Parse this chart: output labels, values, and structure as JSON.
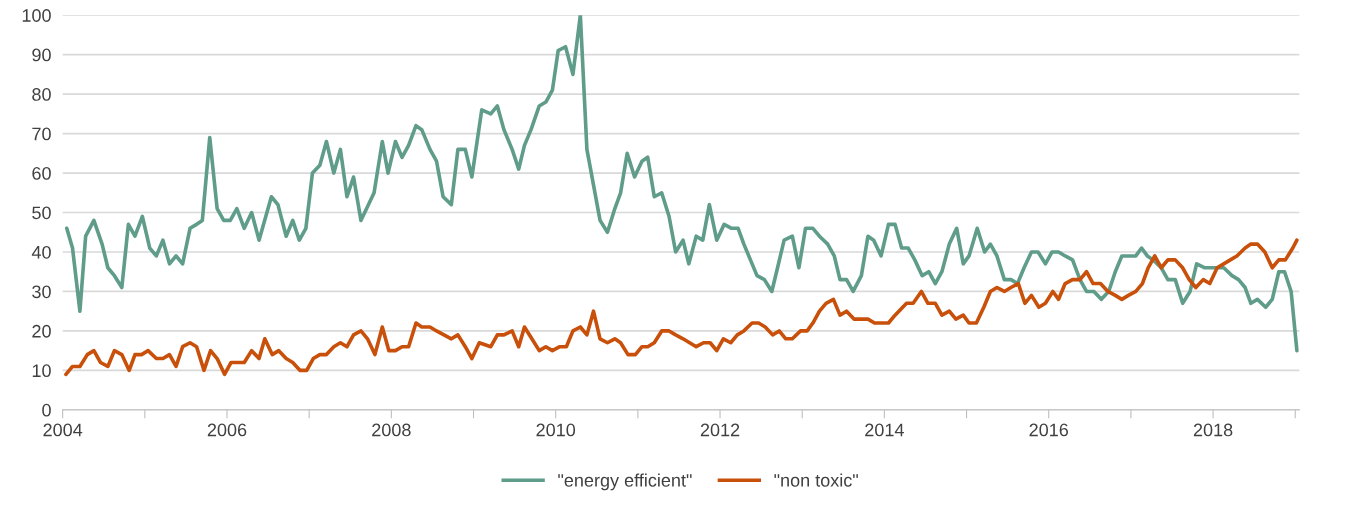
{
  "chart_data": {
    "type": "line",
    "xlim": [
      2004,
      2019.05
    ],
    "xticks": [
      2004,
      {
        "value": 2005,
        "label": null
      },
      2006,
      {
        "value": 2007,
        "label": null
      },
      2008,
      {
        "value": 2009,
        "label": null
      },
      2010,
      {
        "value": 2011,
        "label": null
      },
      2012,
      {
        "value": 2013,
        "label": null
      },
      2014,
      {
        "value": 2015,
        "label": null
      },
      2016,
      {
        "value": 2017,
        "label": null
      },
      2018,
      {
        "value": 2019,
        "label": null
      }
    ],
    "ylim": [
      0,
      100
    ],
    "yticks": [
      0,
      10,
      20,
      30,
      40,
      50,
      60,
      70,
      80,
      90,
      100
    ],
    "grid": "y",
    "legend": "bottom",
    "line_style": "solid",
    "series": [
      {
        "name": "\"energy efficient\"",
        "color": "#5f9c8a",
        "x": [
          2004.05,
          2004.12,
          2004.21,
          2004.28,
          2004.38,
          2004.48,
          2004.55,
          2004.63,
          2004.72,
          2004.8,
          2004.88,
          2004.97,
          2005.06,
          2005.14,
          2005.22,
          2005.3,
          2005.38,
          2005.46,
          2005.55,
          2005.63,
          2005.7,
          2005.79,
          2005.88,
          2005.96,
          2006.04,
          2006.12,
          2006.21,
          2006.3,
          2006.39,
          2006.54,
          2006.62,
          2006.72,
          2006.8,
          2006.88,
          2006.96,
          2007.04,
          2007.13,
          2007.21,
          2007.3,
          2007.38,
          2007.46,
          2007.54,
          2007.63,
          2007.79,
          2007.89,
          2007.96,
          2008.05,
          2008.13,
          2008.21,
          2008.3,
          2008.37,
          2008.47,
          2008.55,
          2008.63,
          2008.73,
          2008.81,
          2008.9,
          2008.98,
          2009.1,
          2009.21,
          2009.29,
          2009.37,
          2009.47,
          2009.55,
          2009.62,
          2009.7,
          2009.8,
          2009.88,
          2009.96,
          2010.03,
          2010.12,
          2010.21,
          2010.3,
          2010.38,
          2010.46,
          2010.54,
          2010.63,
          2010.72,
          2010.79,
          2010.87,
          2010.96,
          2011.05,
          2011.12,
          2011.2,
          2011.29,
          2011.38,
          2011.46,
          2011.55,
          2011.62,
          2011.71,
          2011.79,
          2011.87,
          2011.96,
          2012.05,
          2012.14,
          2012.22,
          2012.29,
          2012.37,
          2012.45,
          2012.54,
          2012.63,
          2012.7,
          2012.78,
          2012.88,
          2012.96,
          2013.04,
          2013.13,
          2013.21,
          2013.31,
          2013.39,
          2013.46,
          2013.54,
          2013.62,
          2013.72,
          2013.8,
          2013.87,
          2013.96,
          2014.05,
          2014.13,
          2014.21,
          2014.29,
          2014.37,
          2014.46,
          2014.54,
          2014.62,
          2014.7,
          2014.79,
          2014.88,
          2014.96,
          2015.03,
          2015.13,
          2015.22,
          2015.29,
          2015.37,
          2015.46,
          2015.54,
          2015.62,
          2015.7,
          2015.79,
          2015.87,
          2015.96,
          2016.04,
          2016.12,
          2016.2,
          2016.29,
          2016.38,
          2016.46,
          2016.55,
          2016.64,
          2016.73,
          2016.81,
          2016.89,
          2016.98,
          2017.06,
          2017.13,
          2017.2,
          2017.27,
          2017.37,
          2017.45,
          2017.54,
          2017.63,
          2017.72,
          2017.8,
          2017.9,
          2017.98,
          2018.05,
          2018.13,
          2018.23,
          2018.31,
          2018.39,
          2018.46,
          2018.54,
          2018.64,
          2018.72,
          2018.8,
          2018.87,
          2018.95,
          2019.02
        ],
        "values": [
          46,
          41,
          25,
          44,
          48,
          42,
          36,
          34,
          31,
          47,
          44,
          49,
          41,
          39,
          43,
          37,
          39,
          37,
          46,
          47,
          48,
          69,
          51,
          48,
          48,
          51,
          46,
          50,
          43,
          54,
          52,
          44,
          48,
          43,
          46,
          60,
          62,
          68,
          60,
          66,
          54,
          59,
          48,
          55,
          68,
          60,
          68,
          64,
          67,
          72,
          71,
          66,
          63,
          54,
          52,
          66,
          66,
          59,
          76,
          75,
          77,
          71,
          66,
          61,
          67,
          71,
          77,
          78,
          81,
          91,
          92,
          85,
          100,
          66,
          57,
          48,
          45,
          51,
          55,
          65,
          59,
          63,
          64,
          54,
          55,
          49,
          40,
          43,
          37,
          44,
          43,
          52,
          43,
          47,
          46,
          46,
          42,
          38,
          34,
          33,
          30,
          36,
          43,
          44,
          36,
          46,
          46,
          44,
          42,
          39,
          33,
          33,
          30,
          34,
          44,
          43,
          39,
          47,
          47,
          41,
          41,
          38,
          34,
          35,
          32,
          35,
          42,
          46,
          37,
          39,
          46,
          40,
          42,
          39,
          33,
          33,
          32,
          36,
          40,
          40,
          37,
          40,
          40,
          39,
          38,
          33,
          30,
          30,
          28,
          30,
          35,
          39,
          39,
          39,
          41,
          39,
          38,
          36,
          33,
          33,
          27,
          30,
          37,
          36,
          36,
          36,
          36,
          34,
          33,
          31,
          27,
          28,
          26,
          28,
          35,
          35,
          30,
          15
        ]
      },
      {
        "name": "\"non toxic\"",
        "color": "#c8500a",
        "x": [
          2004.04,
          2004.12,
          2004.21,
          2004.3,
          2004.38,
          2004.46,
          2004.55,
          2004.63,
          2004.72,
          2004.81,
          2004.88,
          2004.96,
          2005.04,
          2005.14,
          2005.22,
          2005.3,
          2005.38,
          2005.46,
          2005.55,
          2005.63,
          2005.72,
          2005.8,
          2005.88,
          2005.97,
          2006.05,
          2006.13,
          2006.21,
          2006.3,
          2006.39,
          2006.46,
          2006.55,
          2006.63,
          2006.72,
          2006.8,
          2006.89,
          2006.97,
          2007.05,
          2007.13,
          2007.21,
          2007.3,
          2007.38,
          2007.46,
          2007.54,
          2007.63,
          2007.71,
          2007.8,
          2007.89,
          2007.97,
          2008.05,
          2008.13,
          2008.21,
          2008.3,
          2008.37,
          2008.47,
          2008.55,
          2008.64,
          2008.73,
          2008.81,
          2008.9,
          2008.98,
          2009.07,
          2009.21,
          2009.29,
          2009.37,
          2009.47,
          2009.55,
          2009.62,
          2009.71,
          2009.8,
          2009.88,
          2009.96,
          2010.05,
          2010.13,
          2010.21,
          2010.3,
          2010.38,
          2010.46,
          2010.54,
          2010.63,
          2010.72,
          2010.79,
          2010.88,
          2010.97,
          2011.05,
          2011.12,
          2011.2,
          2011.29,
          2011.38,
          2011.46,
          2011.55,
          2011.63,
          2011.71,
          2011.8,
          2011.88,
          2011.96,
          2012.04,
          2012.13,
          2012.21,
          2012.29,
          2012.39,
          2012.47,
          2012.55,
          2012.64,
          2012.72,
          2012.8,
          2012.88,
          2012.98,
          2013.06,
          2013.13,
          2013.21,
          2013.29,
          2013.38,
          2013.46,
          2013.54,
          2013.63,
          2013.72,
          2013.8,
          2013.88,
          2013.96,
          2014.05,
          2014.13,
          2014.27,
          2014.35,
          2014.45,
          2014.53,
          2014.62,
          2014.7,
          2014.79,
          2014.87,
          2014.96,
          2015.03,
          2015.12,
          2015.21,
          2015.29,
          2015.37,
          2015.46,
          2015.54,
          2015.63,
          2015.71,
          2015.79,
          2015.88,
          2015.96,
          2016.05,
          2016.12,
          2016.2,
          2016.29,
          2016.38,
          2016.46,
          2016.54,
          2016.63,
          2016.72,
          2016.81,
          2016.89,
          2016.97,
          2017.06,
          2017.14,
          2017.21,
          2017.29,
          2017.37,
          2017.45,
          2017.54,
          2017.63,
          2017.71,
          2017.79,
          2017.88,
          2017.96,
          2018.05,
          2018.13,
          2018.21,
          2018.29,
          2018.39,
          2018.46,
          2018.54,
          2018.63,
          2018.72,
          2018.8,
          2018.88,
          2018.97,
          2019.02
        ],
        "values": [
          9,
          11,
          11,
          14,
          15,
          12,
          11,
          15,
          14,
          10,
          14,
          14,
          15,
          13,
          13,
          14,
          11,
          16,
          17,
          16,
          10,
          15,
          13,
          9,
          12,
          12,
          12,
          15,
          13,
          18,
          14,
          15,
          13,
          12,
          10,
          10,
          13,
          14,
          14,
          16,
          17,
          16,
          19,
          20,
          18,
          14,
          21,
          15,
          15,
          16,
          16,
          22,
          21,
          21,
          20,
          19,
          18,
          19,
          16,
          13,
          17,
          16,
          19,
          19,
          20,
          16,
          21,
          18,
          15,
          16,
          15,
          16,
          16,
          20,
          21,
          19,
          25,
          18,
          17,
          18,
          17,
          14,
          14,
          16,
          16,
          17,
          20,
          20,
          19,
          18,
          17,
          16,
          17,
          17,
          15,
          18,
          17,
          19,
          20,
          22,
          22,
          21,
          19,
          20,
          18,
          18,
          20,
          20,
          22,
          25,
          27,
          28,
          24,
          25,
          23,
          23,
          23,
          22,
          22,
          22,
          24,
          27,
          27,
          30,
          27,
          27,
          24,
          25,
          23,
          24,
          22,
          22,
          26,
          30,
          31,
          30,
          31,
          32,
          27,
          29,
          26,
          27,
          30,
          28,
          32,
          33,
          33,
          35,
          32,
          32,
          30,
          29,
          28,
          29,
          30,
          32,
          36,
          39,
          36,
          38,
          38,
          36,
          33,
          31,
          33,
          32,
          36,
          37,
          38,
          39,
          41,
          42,
          42,
          40,
          36,
          38,
          38,
          41,
          43
        ]
      }
    ]
  }
}
